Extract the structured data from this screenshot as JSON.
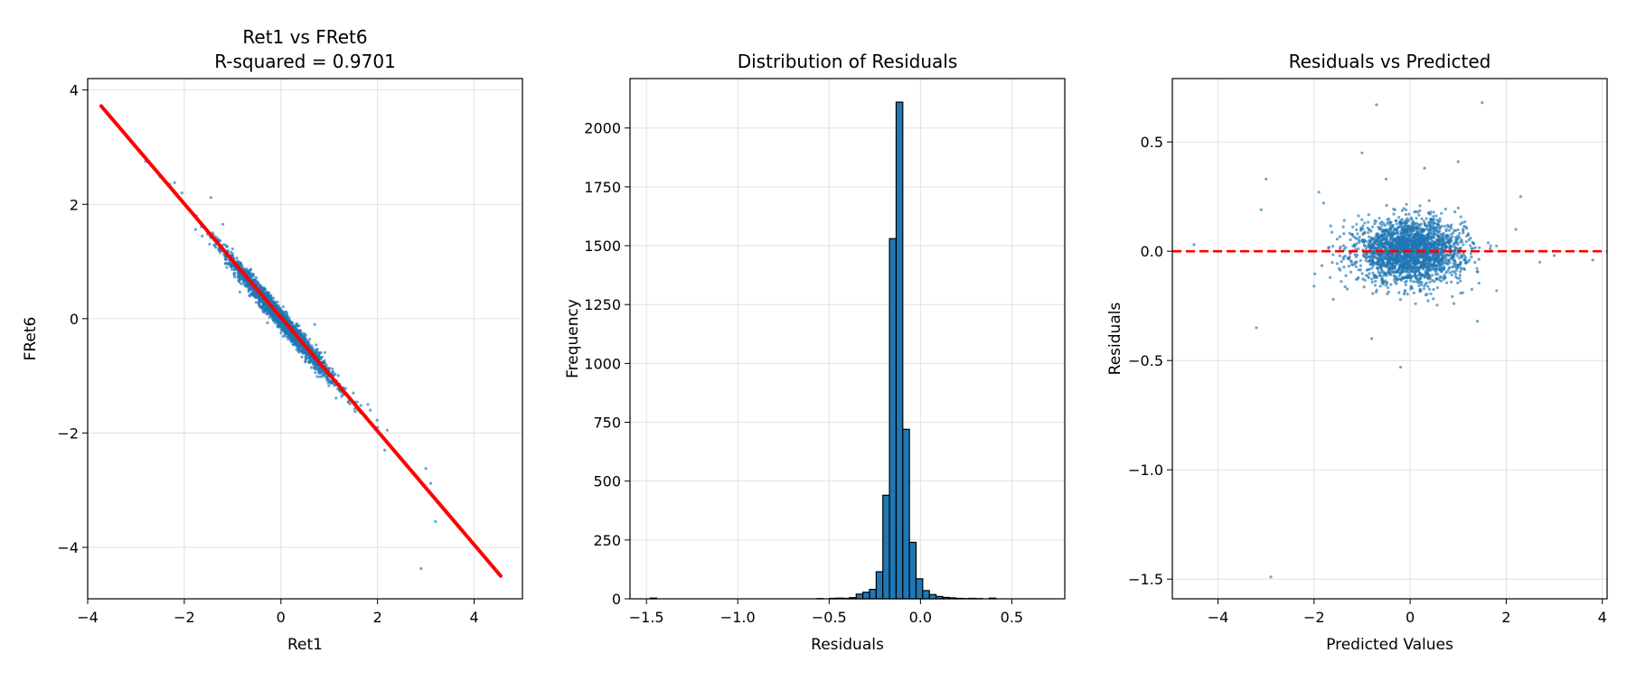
{
  "chart_data": [
    {
      "type": "scatter",
      "title_lines": [
        "Ret1 vs FRet6",
        "R-squared = 0.9701"
      ],
      "xlabel": "Ret1",
      "ylabel": "FRet6",
      "xlim": [
        -4.0,
        5.0
      ],
      "ylim": [
        -4.9,
        4.2
      ],
      "xticks": [
        -4,
        -2,
        0,
        2,
        4
      ],
      "yticks": [
        -4,
        -2,
        0,
        2,
        4
      ],
      "xtick_labels": [
        "−4",
        "−2",
        "0",
        "2",
        "4"
      ],
      "ytick_labels": [
        "−4",
        "−2",
        "0",
        "2",
        "4"
      ],
      "grid": true,
      "point_color": "#1f77b4",
      "fit_line_color": "#ff0000",
      "fit_line": {
        "x": [
          -3.72,
          4.55
        ],
        "y": [
          3.72,
          -4.5
        ]
      },
      "cluster": {
        "center": [
          0,
          0
        ],
        "sd_x": 0.55,
        "slope": -0.99,
        "noise_sd": 0.09,
        "count": 2400
      },
      "outliers": [
        {
          "x": -2.8,
          "y": 2.75
        },
        {
          "x": -2.5,
          "y": 2.48
        },
        {
          "x": -2.3,
          "y": 2.35
        },
        {
          "x": -2.2,
          "y": 2.38
        },
        {
          "x": -2.05,
          "y": 2.2
        },
        {
          "x": -1.45,
          "y": 2.12
        },
        {
          "x": -1.75,
          "y": 1.8
        },
        {
          "x": -1.2,
          "y": 1.65
        },
        {
          "x": -1.0,
          "y": 1.22
        },
        {
          "x": 0.7,
          "y": -0.1
        },
        {
          "x": 1.4,
          "y": -1.45
        },
        {
          "x": 1.8,
          "y": -1.5
        },
        {
          "x": 1.85,
          "y": -1.6
        },
        {
          "x": 2.0,
          "y": -1.9
        },
        {
          "x": 2.2,
          "y": -1.95
        },
        {
          "x": 2.15,
          "y": -2.3
        },
        {
          "x": 3.0,
          "y": -2.62
        },
        {
          "x": 3.1,
          "y": -2.88
        },
        {
          "x": 3.2,
          "y": -3.55
        },
        {
          "x": 2.9,
          "y": -4.37
        },
        {
          "x": 1.5,
          "y": -1.3
        },
        {
          "x": 1.2,
          "y": -1.15
        },
        {
          "x": -0.2,
          "y": 0.35
        }
      ]
    },
    {
      "type": "bar",
      "title_lines": [
        "Distribution of Residuals"
      ],
      "xlabel": "Residuals",
      "ylabel": "Frequency",
      "xlim": [
        -1.59,
        0.79
      ],
      "ylim": [
        0,
        2210
      ],
      "xticks": [
        -1.5,
        -1.0,
        -0.5,
        0.0,
        0.5
      ],
      "yticks": [
        0,
        250,
        500,
        750,
        1000,
        1250,
        1500,
        1750,
        2000
      ],
      "xtick_labels": [
        "−1.5",
        "−1.0",
        "−0.5",
        "0.0",
        "0.5"
      ],
      "ytick_labels": [
        "0",
        "250",
        "500",
        "750",
        "1000",
        "1250",
        "1500",
        "1750",
        "2000"
      ],
      "grid": true,
      "bar_color": "#1f77b4",
      "edge_color": "#000000",
      "bin_start": -1.48,
      "bin_width": 0.0364,
      "values": [
        3,
        0,
        0,
        0,
        0,
        0,
        0,
        0,
        0,
        0,
        0,
        0,
        0,
        0,
        0,
        0,
        0,
        0,
        0,
        0,
        0,
        0,
        0,
        0,
        0,
        1,
        0,
        2,
        3,
        2,
        5,
        20,
        28,
        40,
        115,
        440,
        1530,
        2110,
        720,
        240,
        85,
        35,
        18,
        10,
        6,
        4,
        2,
        1,
        2,
        1,
        0,
        3
      ]
    },
    {
      "type": "scatter",
      "title_lines": [
        "Residuals vs Predicted"
      ],
      "xlabel": "Predicted Values",
      "ylabel": "Residuals",
      "xlim": [
        -4.95,
        4.1
      ],
      "ylim": [
        -1.59,
        0.79
      ],
      "xticks": [
        -4,
        -2,
        0,
        2,
        4
      ],
      "yticks": [
        0.5,
        0.0,
        -0.5,
        -1.0,
        -1.5
      ],
      "xtick_labels": [
        "−4",
        "−2",
        "0",
        "2",
        "4"
      ],
      "ytick_labels": [
        "0.5",
        "0.0",
        "−0.5",
        "−1.0",
        "−1.5"
      ],
      "grid": true,
      "point_color": "#1f77b4",
      "zero_line": {
        "y": 0.0,
        "color": "#ff0000",
        "style": "dashed"
      },
      "cluster": {
        "center": [
          0,
          0
        ],
        "sd_x": 0.55,
        "sd_y": 0.07,
        "count": 2400
      },
      "outliers": [
        {
          "x": -0.7,
          "y": 0.67
        },
        {
          "x": 1.5,
          "y": 0.68
        },
        {
          "x": -1.0,
          "y": 0.45
        },
        {
          "x": 1.0,
          "y": 0.41
        },
        {
          "x": -3.0,
          "y": 0.33
        },
        {
          "x": -3.1,
          "y": 0.19
        },
        {
          "x": -4.5,
          "y": 0.03
        },
        {
          "x": 3.8,
          "y": -0.04
        },
        {
          "x": -3.2,
          "y": -0.35
        },
        {
          "x": -0.8,
          "y": -0.4
        },
        {
          "x": -0.2,
          "y": -0.53
        },
        {
          "x": -2.9,
          "y": -1.49
        },
        {
          "x": 2.3,
          "y": 0.25
        },
        {
          "x": 2.2,
          "y": 0.1
        },
        {
          "x": -1.9,
          "y": 0.27
        },
        {
          "x": -1.8,
          "y": 0.22
        },
        {
          "x": -2.0,
          "y": -0.16
        },
        {
          "x": 1.8,
          "y": -0.18
        },
        {
          "x": 2.7,
          "y": -0.05
        },
        {
          "x": 3.0,
          "y": -0.02
        },
        {
          "x": -1.6,
          "y": -0.22
        },
        {
          "x": 1.4,
          "y": -0.32
        },
        {
          "x": 0.3,
          "y": 0.38
        },
        {
          "x": -0.5,
          "y": 0.33
        }
      ]
    }
  ]
}
